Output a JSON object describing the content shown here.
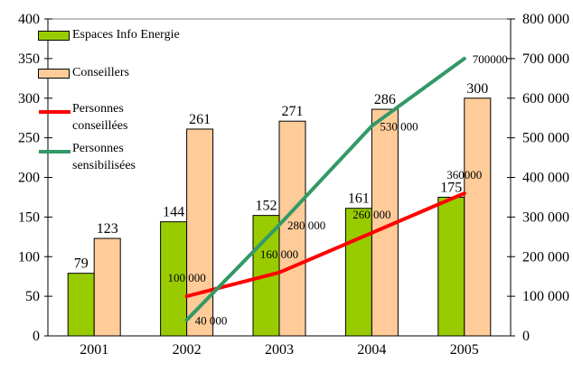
{
  "chart_data": {
    "type": "combo-bar-line",
    "title": "",
    "categories": [
      "2001",
      "2002",
      "2003",
      "2004",
      "2005"
    ],
    "bar_series": [
      {
        "name": "Espaces Info Energie",
        "color": "#99CC00",
        "axis": "left",
        "values": [
          79,
          144,
          152,
          161,
          175
        ],
        "labels": [
          "79",
          "144",
          "152",
          "161",
          "175"
        ]
      },
      {
        "name": "Conseillers",
        "color": "#FFCC99",
        "axis": "left",
        "values": [
          123,
          261,
          271,
          286,
          300
        ],
        "labels": [
          "123",
          "261",
          "271",
          "286",
          "300"
        ]
      }
    ],
    "line_series": [
      {
        "name": "Personnes conseillées",
        "color": "#FF0000",
        "axis": "right",
        "values": [
          null,
          100000,
          160000,
          260000,
          360000
        ],
        "labels": [
          null,
          "100 000",
          "160 000",
          "260 000",
          "360000"
        ],
        "label_position": "above"
      },
      {
        "name": "Personnes sensibilisées",
        "color": "#339966",
        "axis": "right",
        "values": [
          null,
          40000,
          280000,
          530000,
          700000
        ],
        "labels": [
          null,
          "40 000",
          "280 000",
          "530 000",
          "700000"
        ],
        "label_position": "right"
      }
    ],
    "left_axis": {
      "min": 0,
      "max": 400,
      "step": 50,
      "tick_labels": [
        "0",
        "50",
        "100",
        "150",
        "200",
        "250",
        "300",
        "350",
        "400"
      ]
    },
    "right_axis": {
      "min": 0,
      "max": 800000,
      "step": 100000,
      "tick_labels": [
        "0",
        "100 000",
        "200 000",
        "300 000",
        "400 000",
        "500 000",
        "600 000",
        "700 000",
        "800 000"
      ]
    },
    "grid": "single top gridline",
    "gridline_color": "#808080",
    "legend_position": "overlay-top-left"
  }
}
